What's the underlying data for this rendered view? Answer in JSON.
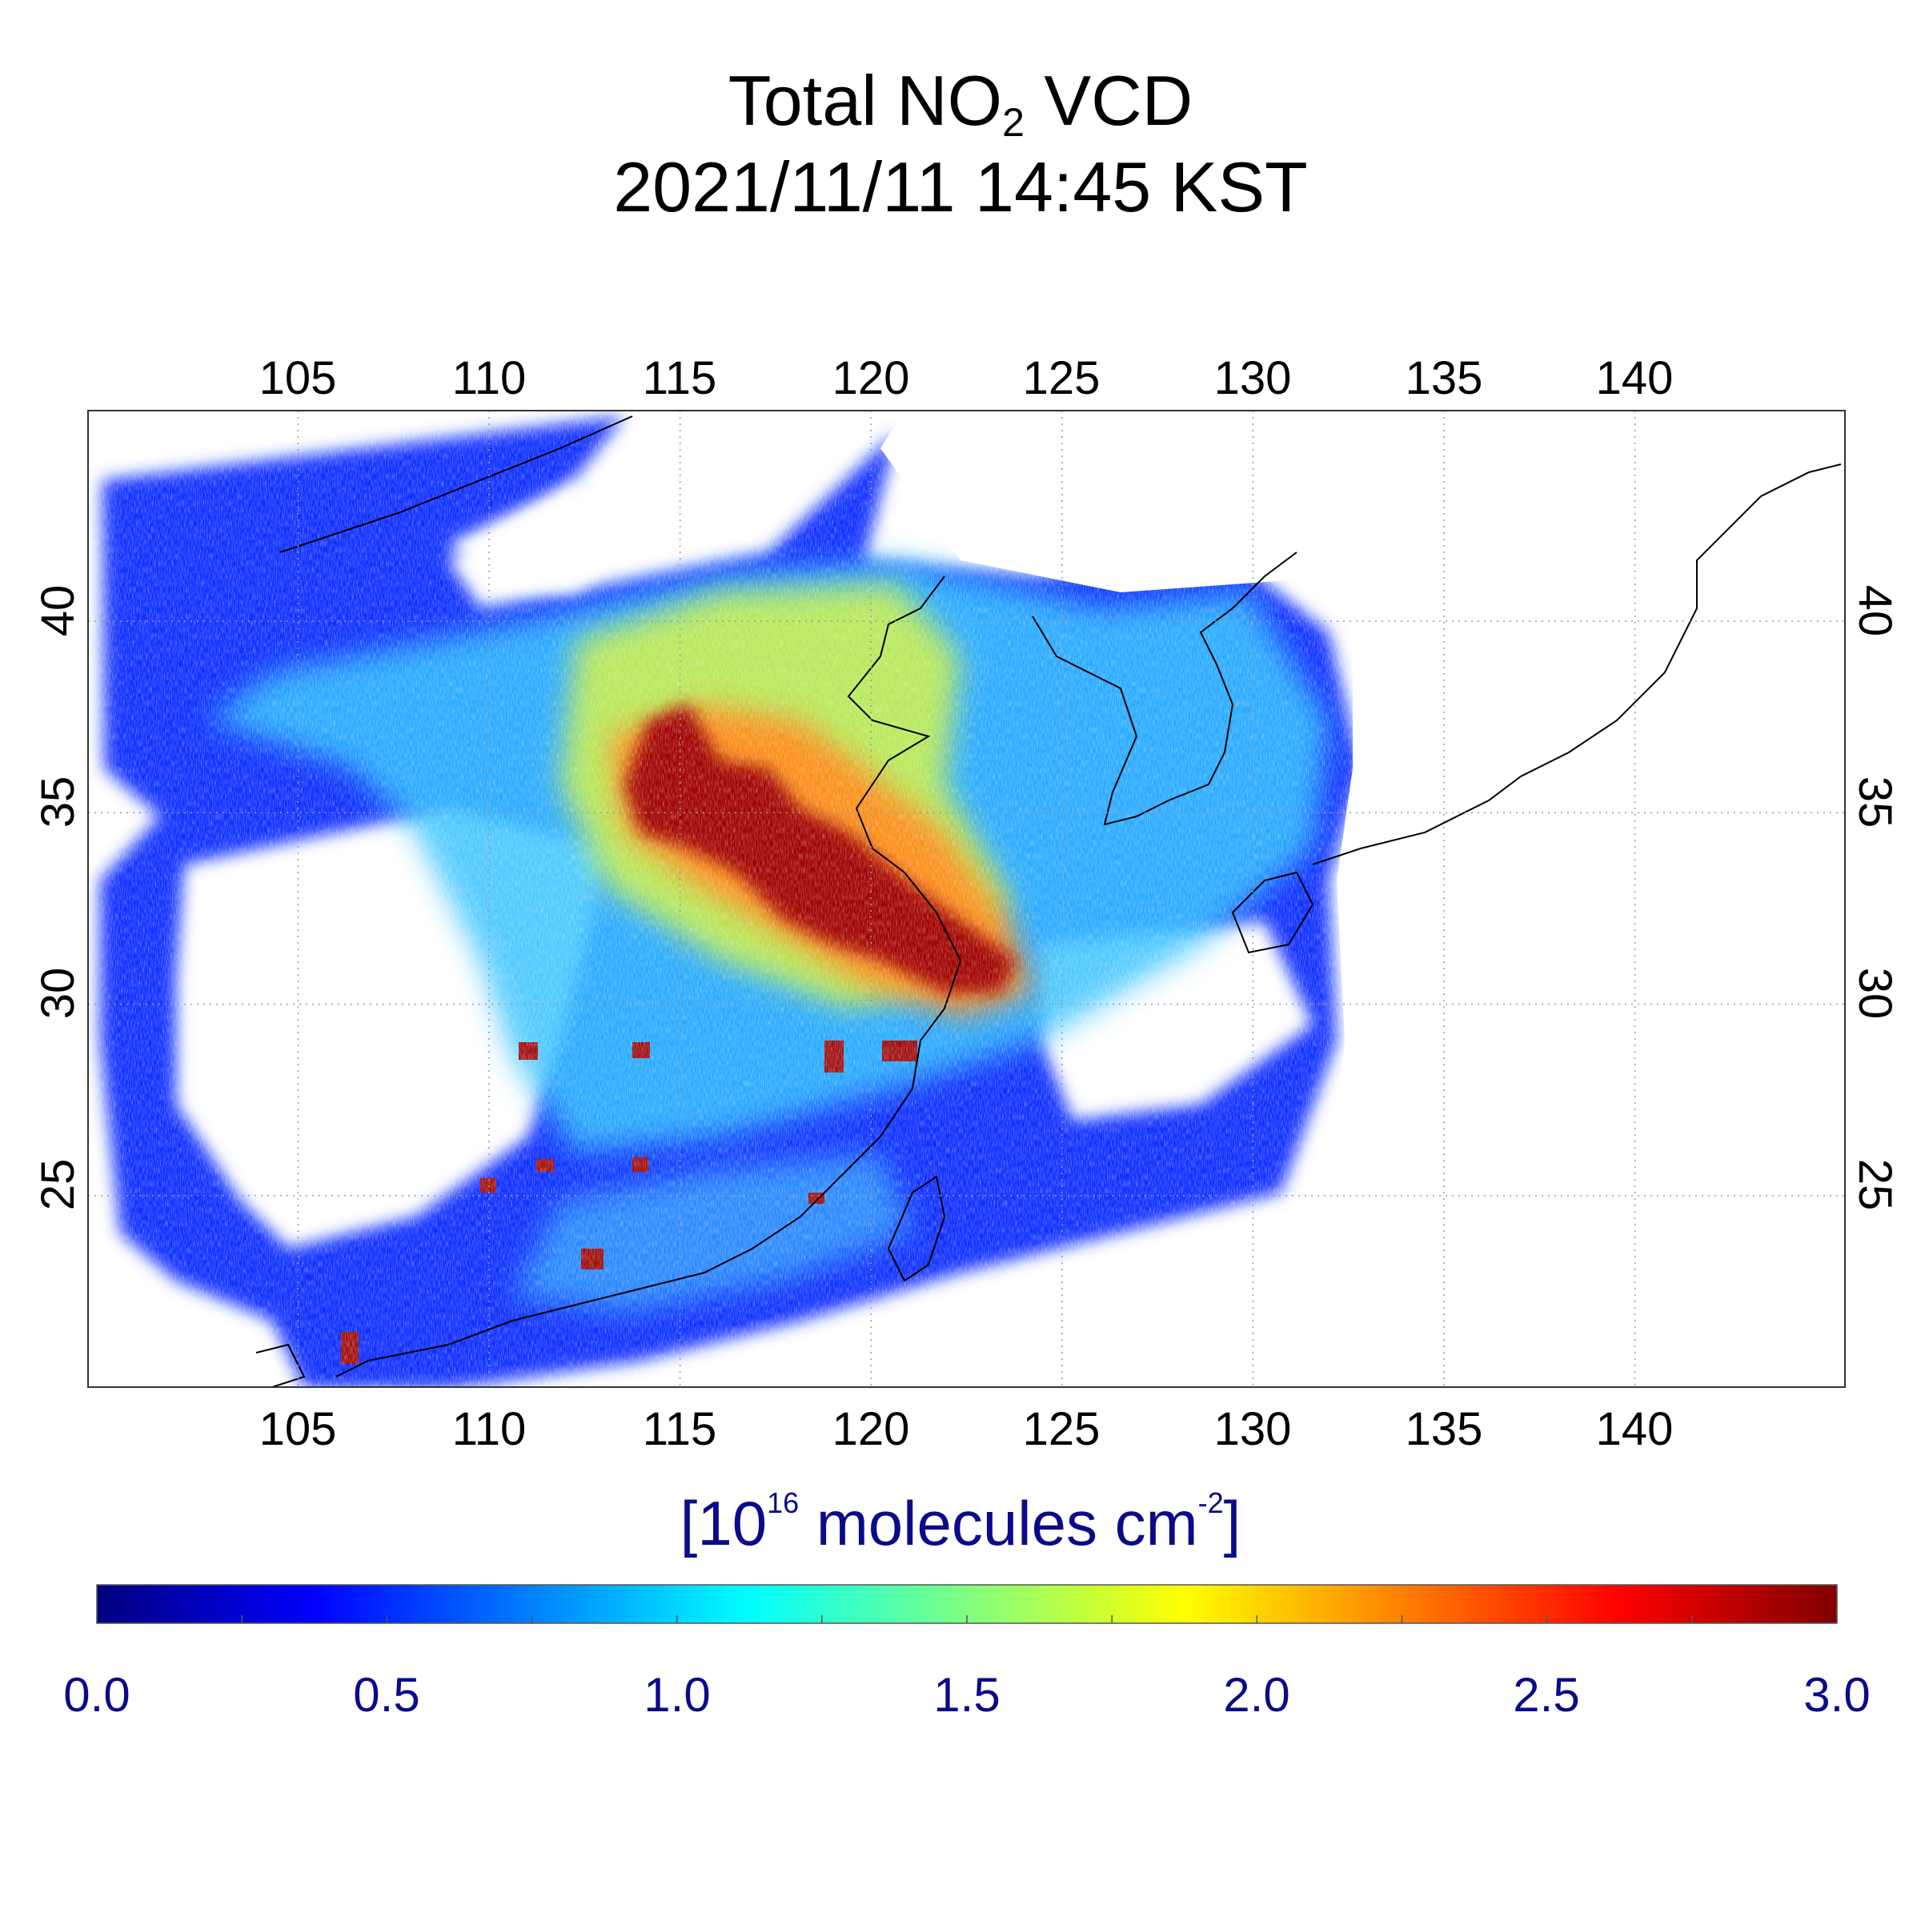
{
  "title": {
    "line1_prefix": "Total NO",
    "line1_sub": "2",
    "line1_suffix": " VCD",
    "line2": "2021/11/11 14:45 KST"
  },
  "map": {
    "lon_range": [
      99.5,
      145.5
    ],
    "lat_range": [
      20.0,
      45.5
    ],
    "lon_ticks": [
      "105",
      "110",
      "115",
      "120",
      "125",
      "130",
      "135",
      "140"
    ],
    "lat_ticks": [
      "25",
      "30",
      "35",
      "40"
    ],
    "grid": "on"
  },
  "colorbar": {
    "unit_prefix": "[10",
    "unit_exp": "16",
    "unit_mid": " molecules cm",
    "unit_exp2": "-2",
    "unit_suffix": "]",
    "tick_labels": [
      "0.0",
      "0.5",
      "1.0",
      "1.5",
      "2.0",
      "2.5",
      "3.0"
    ],
    "colors": [
      "#00007f",
      "#0000ff",
      "#0080ff",
      "#00ffff",
      "#80ff80",
      "#ffff00",
      "#ff8000",
      "#ff0000",
      "#800000"
    ],
    "range": [
      0.0,
      3.0
    ]
  }
}
